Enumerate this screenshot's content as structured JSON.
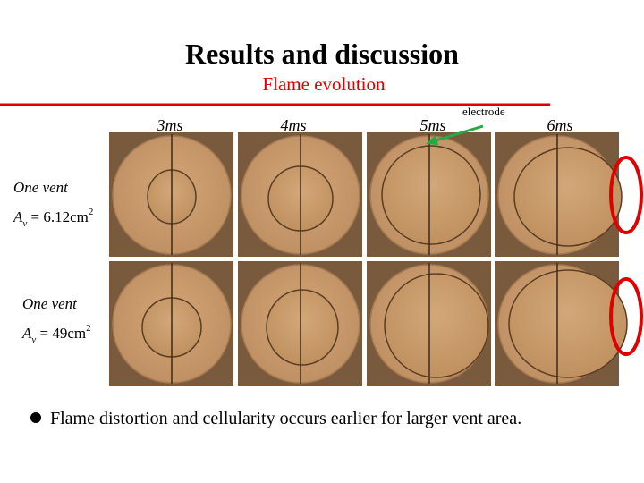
{
  "header": {
    "title": "Results and discussion",
    "subtitle": "Flame evolution"
  },
  "figure": {
    "times": [
      "3ms",
      "4ms",
      "5ms",
      "6ms"
    ],
    "electrode_label": "electrode",
    "rows": [
      {
        "label": "One   vent",
        "symbol": "A",
        "subscript": "v",
        "equation": " = 6.12cm",
        "superscript": "2"
      },
      {
        "label": "One   vent",
        "symbol": "A",
        "subscript": "v",
        "equation": " = 49cm",
        "superscript": "2"
      }
    ]
  },
  "bullets": [
    "Flame distortion and cellularity occurs earlier for larger vent area."
  ]
}
